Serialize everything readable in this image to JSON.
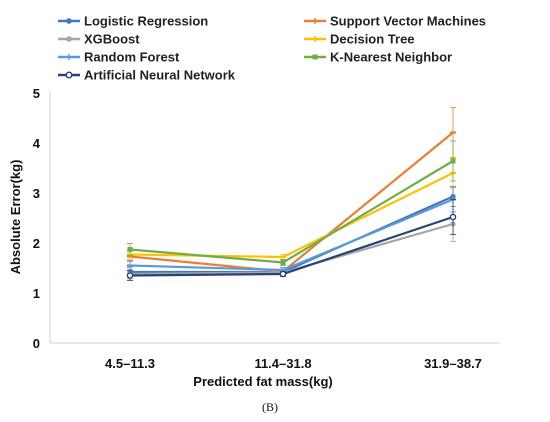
{
  "chart_data": {
    "type": "line",
    "categories": [
      "4.5–11.3",
      "11.4–31.8",
      "31.9–38.7"
    ],
    "xlabel": "Predicted fat mass(kg)",
    "ylabel": "Absolute Error(kg)",
    "ylim": [
      0,
      5
    ],
    "yticks": [
      0,
      1,
      2,
      3,
      4,
      5
    ],
    "grid": false,
    "legend_position": "top",
    "series": [
      {
        "name": "Logistic Regression",
        "color": "#4472C4",
        "marker": "circle",
        "values": [
          1.42,
          1.42,
          2.93
        ],
        "errors": [
          0.1,
          0.05,
          0.2
        ]
      },
      {
        "name": "Support Vector Machines",
        "color": "#ED7D31",
        "marker": "line",
        "values": [
          1.73,
          1.43,
          4.21
        ],
        "errors": [
          0.1,
          0.05,
          0.5
        ]
      },
      {
        "name": "XGBoost",
        "color": "#A5A5A5",
        "marker": "circle",
        "values": [
          1.38,
          1.41,
          2.38
        ],
        "errors": [
          0.1,
          0.05,
          0.35
        ]
      },
      {
        "name": "Decision Tree",
        "color": "#FFC000",
        "marker": "line",
        "values": [
          1.77,
          1.72,
          3.4
        ],
        "errors": [
          0.1,
          0.05,
          0.3
        ]
      },
      {
        "name": "Random Forest",
        "color": "#5B9BD5",
        "marker": "line",
        "values": [
          1.55,
          1.46,
          2.87
        ],
        "errors": [
          0.1,
          0.05,
          0.25
        ]
      },
      {
        "name": "K-Nearest Neighbor",
        "color": "#70AD47",
        "marker": "square",
        "values": [
          1.87,
          1.61,
          3.64
        ],
        "errors": [
          0.12,
          0.06,
          0.4
        ]
      },
      {
        "name": "Artificial Neural Network",
        "color": "#264478",
        "marker": "open-circle",
        "values": [
          1.35,
          1.38,
          2.52
        ],
        "errors": [
          0.1,
          0.05,
          0.35
        ]
      }
    ]
  },
  "figure": {
    "panel_label": "(B)"
  }
}
